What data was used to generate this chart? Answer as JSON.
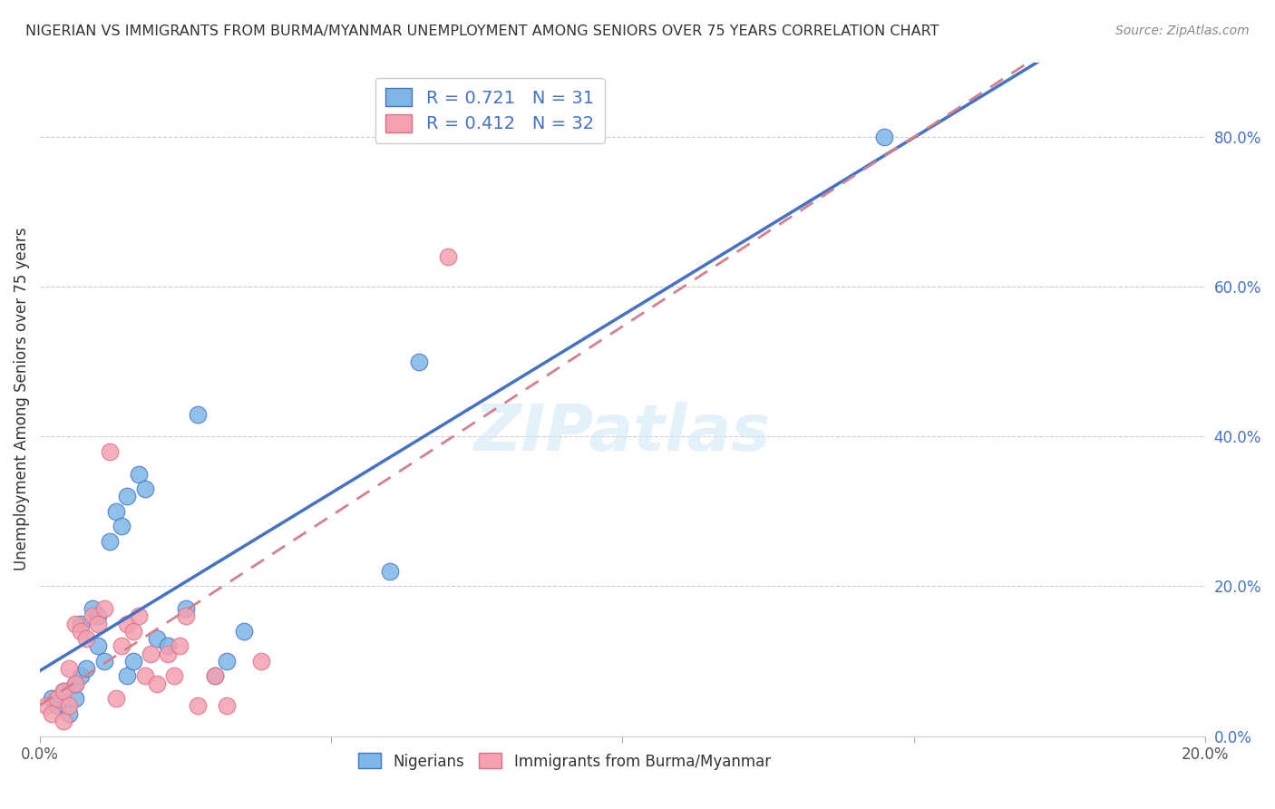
{
  "title": "NIGERIAN VS IMMIGRANTS FROM BURMA/MYANMAR UNEMPLOYMENT AMONG SENIORS OVER 75 YEARS CORRELATION CHART",
  "source": "Source: ZipAtlas.com",
  "ylabel": "Unemployment Among Seniors over 75 years",
  "xmin": 0.0,
  "xmax": 0.2,
  "ymin": 0.0,
  "ymax": 0.9,
  "xtick_positions": [
    0.0,
    0.05,
    0.1,
    0.15,
    0.2
  ],
  "xtick_labels": [
    "0.0%",
    "",
    "",
    "",
    "20.0%"
  ],
  "ytick_labels_right": [
    "0.0%",
    "20.0%",
    "40.0%",
    "60.0%",
    "80.0%"
  ],
  "ytick_vals_right": [
    0.0,
    0.2,
    0.4,
    0.6,
    0.8
  ],
  "color_nigerian": "#7EB6E8",
  "color_burma": "#F4A0B0",
  "color_line_nigerian": "#4472C4",
  "color_line_burma": "#D4808C",
  "watermark": "ZIPatlas",
  "legend_labels": [
    "Nigerians",
    "Immigrants from Burma/Myanmar"
  ],
  "top_legend_labels": [
    "R = 0.721   N = 31",
    "R = 0.412   N = 32"
  ],
  "nigerian_x": [
    0.002,
    0.003,
    0.004,
    0.005,
    0.006,
    0.006,
    0.007,
    0.007,
    0.008,
    0.009,
    0.01,
    0.01,
    0.011,
    0.012,
    0.013,
    0.014,
    0.015,
    0.015,
    0.016,
    0.017,
    0.018,
    0.02,
    0.022,
    0.025,
    0.027,
    0.03,
    0.032,
    0.035,
    0.06,
    0.065,
    0.145
  ],
  "nigerian_y": [
    0.05,
    0.04,
    0.06,
    0.03,
    0.05,
    0.07,
    0.08,
    0.15,
    0.09,
    0.17,
    0.16,
    0.12,
    0.1,
    0.26,
    0.3,
    0.28,
    0.32,
    0.08,
    0.1,
    0.35,
    0.33,
    0.13,
    0.12,
    0.17,
    0.43,
    0.08,
    0.1,
    0.14,
    0.22,
    0.5,
    0.8
  ],
  "burma_x": [
    0.001,
    0.002,
    0.003,
    0.004,
    0.004,
    0.005,
    0.005,
    0.006,
    0.006,
    0.007,
    0.008,
    0.009,
    0.01,
    0.011,
    0.012,
    0.013,
    0.014,
    0.015,
    0.016,
    0.017,
    0.018,
    0.019,
    0.02,
    0.022,
    0.023,
    0.024,
    0.025,
    0.027,
    0.03,
    0.032,
    0.038,
    0.07
  ],
  "burma_y": [
    0.04,
    0.03,
    0.05,
    0.06,
    0.02,
    0.04,
    0.09,
    0.07,
    0.15,
    0.14,
    0.13,
    0.16,
    0.15,
    0.17,
    0.38,
    0.05,
    0.12,
    0.15,
    0.14,
    0.16,
    0.08,
    0.11,
    0.07,
    0.11,
    0.08,
    0.12,
    0.16,
    0.04,
    0.08,
    0.04,
    0.1,
    0.64
  ]
}
